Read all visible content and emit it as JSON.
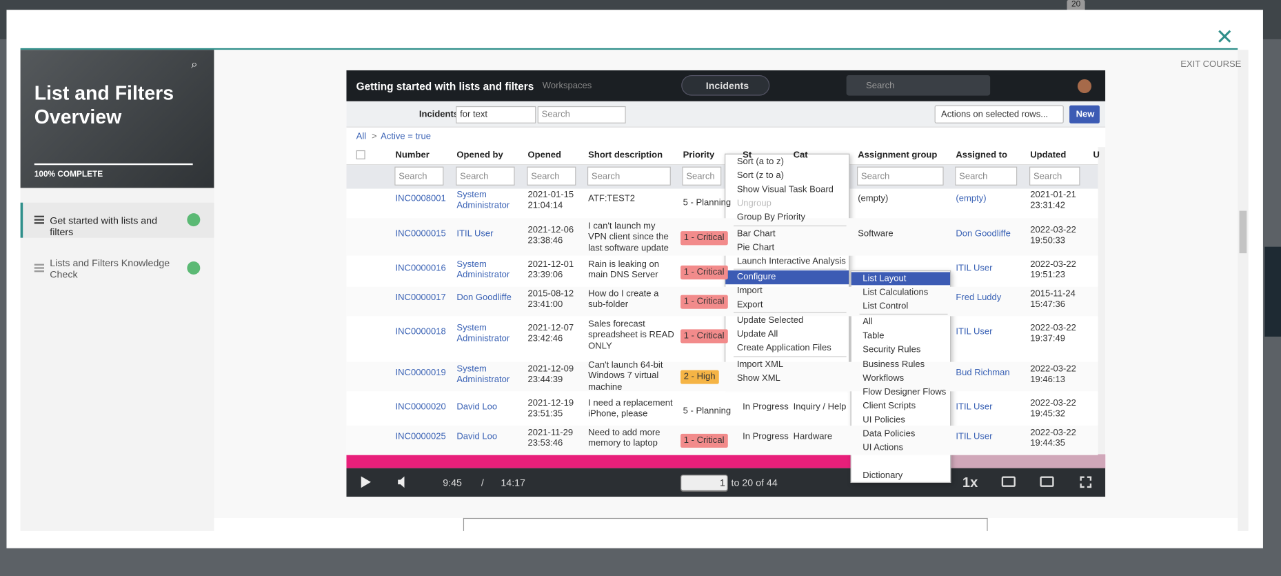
{
  "badge": "20",
  "course": {
    "title": "List and Filters Overview",
    "progress": "100% COMPLETE",
    "lessons": [
      "Get started with lists and filters",
      "Lists and Filters Knowledge Check"
    ],
    "exit": "EXIT COURSE"
  },
  "video": {
    "title": "Getting started with lists and filters",
    "nav": "Workspaces",
    "app_tab": "Incidents",
    "global_search": "Search",
    "list": {
      "label": "Incidents",
      "field": "for text",
      "search": "Search",
      "actions": "Actions on selected rows...",
      "new": "New",
      "breadcrumb": [
        "All",
        ">",
        "Active = true"
      ],
      "columns": [
        "Number",
        "Opened by",
        "Opened",
        "Short description",
        "Priority",
        "St",
        "Cat",
        "Assignment group",
        "Assigned to",
        "Updated",
        "U"
      ],
      "search_placeholder": "Search",
      "rows": [
        {
          "number": "INC0008001",
          "opened_by": "System Administrator",
          "opened": "2021-01-15 21:04:14",
          "desc": "ATF:TEST2",
          "priority": "5 - Planning",
          "group": "(empty)",
          "assigned": "(empty)",
          "updated": "2021-01-21 23:31:42"
        },
        {
          "number": "INC0000015",
          "opened_by": "ITIL User",
          "opened": "2021-12-06 23:38:46",
          "desc": "I can't launch my VPN client since the last software update",
          "priority": "1 - Critical",
          "priority_bg": "#f28b8b",
          "group": "Software",
          "assigned": "Don Goodliffe",
          "updated": "2022-03-22 19:50:33"
        },
        {
          "number": "INC0000016",
          "opened_by": "System Administrator",
          "opened": "2021-12-01 23:39:06",
          "desc": "Rain is leaking on main DNS Server",
          "priority": "1 - Critical",
          "priority_bg": "#f28b8b",
          "assigned": "ITIL User",
          "updated": "2022-03-22 19:51:23"
        },
        {
          "number": "INC0000017",
          "opened_by": "Don Goodliffe",
          "opened": "2015-08-12 23:41:00",
          "desc": "How do I create a sub-folder",
          "priority": "1 - Critical",
          "priority_bg": "#f28b8b",
          "assigned": "Fred Luddy",
          "updated": "2015-11-24 15:47:36"
        },
        {
          "number": "INC0000018",
          "opened_by": "System Administrator",
          "opened": "2021-12-07 23:42:46",
          "desc": "Sales forecast spreadsheet is READ ONLY",
          "priority": "1 - Critical",
          "priority_bg": "#f28b8b",
          "assigned": "ITIL User",
          "updated": "2022-03-22 19:37:49"
        },
        {
          "number": "INC0000019",
          "opened_by": "System Administrator",
          "opened": "2021-12-09 23:44:39",
          "desc": "Can't launch 64-bit Windows 7 virtual machine",
          "priority": "2 - High",
          "priority_bg": "#f5b445",
          "assigned": "Bud Richman",
          "updated": "2022-03-22 19:46:13"
        },
        {
          "number": "INC0000020",
          "opened_by": "David Loo",
          "opened": "2021-12-19 23:51:35",
          "desc": "I need a replacement iPhone, please",
          "priority": "5 - Planning",
          "state": "In Progress",
          "category": "Inquiry / Help",
          "assigned": "ITIL User",
          "updated": "2022-03-22 19:45:32"
        },
        {
          "number": "INC0000025",
          "opened_by": "David Loo",
          "opened": "2021-11-29 23:53:46",
          "desc": "Need to add more memory to laptop",
          "priority": "1 - Critical",
          "priority_bg": "#f28b8b",
          "state": "In Progress",
          "category": "Hardware",
          "assigned": "ITIL User",
          "updated": "2022-03-22 19:44:35"
        }
      ]
    },
    "menu": [
      "Sort (a to z)",
      "Sort (z to a)",
      "Show Visual Task Board",
      "Ungroup",
      "Group By Priority",
      "Bar Chart",
      "Pie Chart",
      "Launch Interactive Analysis",
      "Configure",
      "Import",
      "Export",
      "Update Selected",
      "Update All",
      "Create Application Files",
      "Import XML",
      "Show XML"
    ],
    "submenu": [
      "List Layout",
      "List Calculations",
      "List Control",
      "All",
      "Table",
      "Security Rules",
      "Business Rules",
      "Workflows",
      "Flow Designer Flows",
      "Client Scripts",
      "UI Policies",
      "Data Policies",
      "UI Actions",
      "Dictionary"
    ],
    "player": {
      "time": "9:45",
      "sep": "/",
      "duration": "14:17",
      "page": "1",
      "range": "to 20 of 44",
      "speed": "1x"
    }
  }
}
